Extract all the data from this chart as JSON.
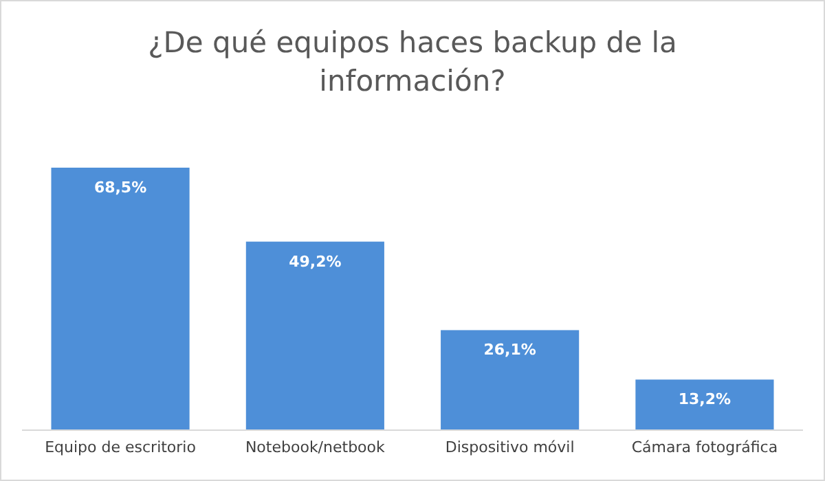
{
  "chart_data": {
    "type": "bar",
    "title": "¿De qué equipos haces backup de la información?",
    "categories": [
      "Equipo de escritorio",
      "Notebook/netbook",
      "Dispositivo móvil",
      "Cámara fotográfica"
    ],
    "values": [
      68.5,
      49.2,
      26.1,
      13.2
    ],
    "value_labels": [
      "68,5%",
      "49,2%",
      "26,1%",
      "13,2%"
    ],
    "color": "#4e8fd8",
    "tick_labels": "x"
  }
}
